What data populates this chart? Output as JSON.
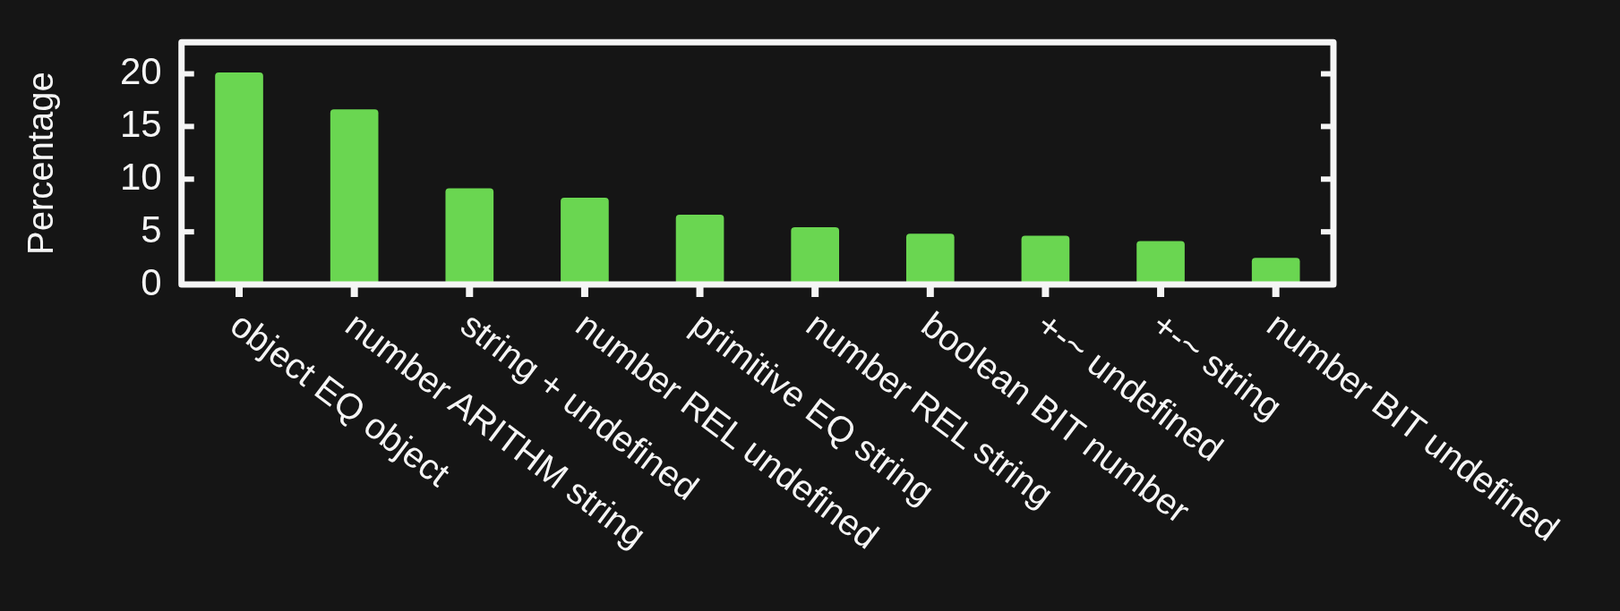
{
  "chart_data": {
    "type": "bar",
    "ylabel": "Percentage",
    "categories": [
      "object EQ object",
      "number ARITHM string",
      "string + undefined",
      "number REL undefined",
      "primitive EQ string",
      "number REL string",
      "boolean BIT number",
      "+-~ undefined",
      "+-~ string",
      "number BIT undefined"
    ],
    "values": [
      20.1,
      16.6,
      9.1,
      8.2,
      6.6,
      5.4,
      4.8,
      4.6,
      4.1,
      2.5
    ],
    "color": "#6ad651",
    "ylim": [
      0,
      23
    ],
    "yticks": [
      0,
      5,
      10,
      15,
      20
    ],
    "legend": false
  }
}
